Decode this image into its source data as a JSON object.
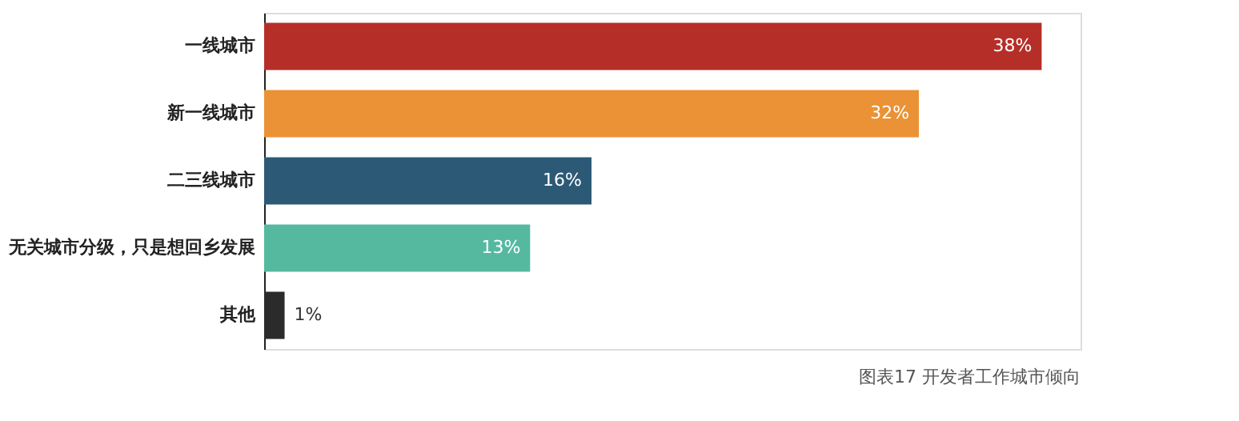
{
  "chart_data": {
    "type": "bar",
    "orientation": "horizontal",
    "categories": [
      "一线城市",
      "新一线城市",
      "二三线城市",
      "无关城市分级，只是想回乡发展",
      "其他"
    ],
    "values": [
      38,
      32,
      16,
      13,
      1
    ],
    "value_labels": [
      "38%",
      "32%",
      "16%",
      "13%",
      "1%"
    ],
    "colors": [
      "#b52f28",
      "#ea9235",
      "#2c5a76",
      "#55b9a0",
      "#2b2b2b"
    ],
    "tick_labels": "y",
    "annotations": [
      "图表17 开发者工作城市倾向"
    ]
  }
}
